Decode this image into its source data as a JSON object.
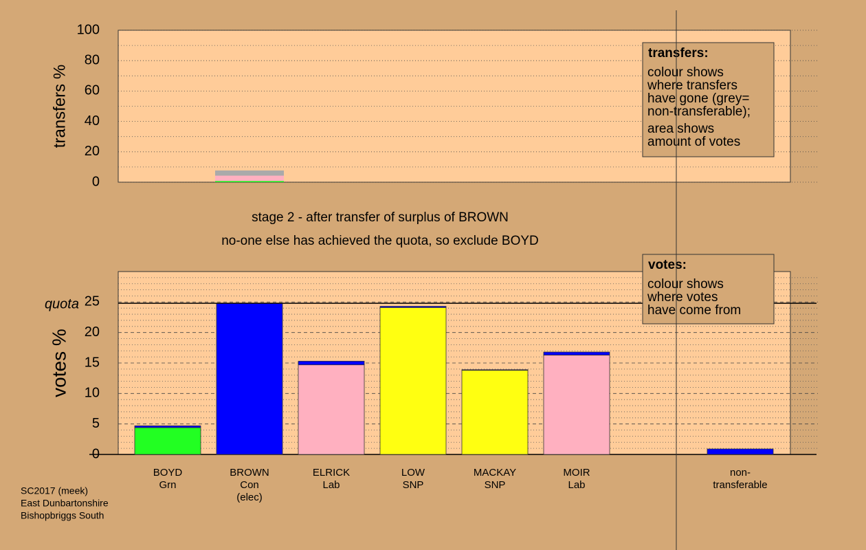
{
  "chart_data": [
    {
      "type": "bar",
      "stacked": true,
      "ylabel": "transfers %",
      "ylim": [
        0,
        100
      ],
      "yticks": [
        0,
        20,
        40,
        60,
        80,
        100
      ],
      "minor_yticks": [
        10,
        30,
        50,
        70,
        90
      ],
      "grid_style": "dotted",
      "series": [
        {
          "color": "#22ee22",
          "values": [
            null,
            0.8,
            null,
            null,
            null,
            null,
            null,
            null
          ]
        },
        {
          "color": "#ffb0c0",
          "values": [
            null,
            3.5,
            null,
            null,
            null,
            null,
            null,
            null
          ]
        },
        {
          "color": "#aaaaaa",
          "values": [
            null,
            3.4,
            null,
            null,
            null,
            null,
            null,
            null
          ]
        }
      ],
      "note": {
        "title": "transfers:",
        "paragraphs": [
          [
            "colour shows",
            "where transfers",
            "have gone (grey=",
            "non-transferable);"
          ],
          [
            "area shows",
            "amount of votes"
          ]
        ]
      }
    },
    {
      "type": "bar",
      "stacked": true,
      "ylabel": "votes %",
      "ylim": [
        0,
        30
      ],
      "yticks": [
        0,
        5,
        10,
        15,
        20,
        25
      ],
      "minor_yticks": [
        1,
        2,
        3,
        4,
        6,
        7,
        8,
        9,
        11,
        12,
        13,
        14,
        16,
        17,
        18,
        19,
        21,
        22,
        23,
        24,
        26,
        27,
        28,
        29
      ],
      "grid_style": "dashed",
      "quota": 24.8,
      "quota_label": "quota",
      "categories": [
        [
          "BOYD",
          "Grn"
        ],
        [
          "BROWN",
          "Con",
          "(elec)"
        ],
        [
          "ELRICK",
          "Lab"
        ],
        [
          "LOW",
          "SNP"
        ],
        [
          "MACKAY",
          "SNP"
        ],
        [
          "MOIR",
          "Lab"
        ],
        null,
        [
          "non-",
          "transferable"
        ]
      ],
      "series": [
        {
          "color": "#22ff22",
          "values": [
            4.4,
            null,
            null,
            null,
            null,
            null,
            null,
            null
          ]
        },
        {
          "color": "#ffb0c0",
          "values": [
            null,
            null,
            14.7,
            null,
            null,
            16.3,
            null,
            null
          ]
        },
        {
          "color": "#ffff11",
          "values": [
            null,
            null,
            null,
            24.1,
            13.8,
            null,
            null,
            null
          ]
        },
        {
          "color": "#0000ff",
          "values": [
            0.3,
            24.8,
            0.6,
            0.2,
            0.1,
            0.5,
            null,
            0.9
          ]
        }
      ],
      "note": {
        "title": "votes:",
        "paragraphs": [
          [
            "colour shows",
            "where votes",
            "have come from"
          ]
        ]
      }
    }
  ],
  "stage_text": [
    "stage 2 - after transfer of surplus of BROWN",
    "no-one else has achieved the quota, so exclude BOYD"
  ],
  "footer": [
    "SC2017 (meek)",
    "East Dunbartonshire",
    "Bishopbriggs South"
  ]
}
